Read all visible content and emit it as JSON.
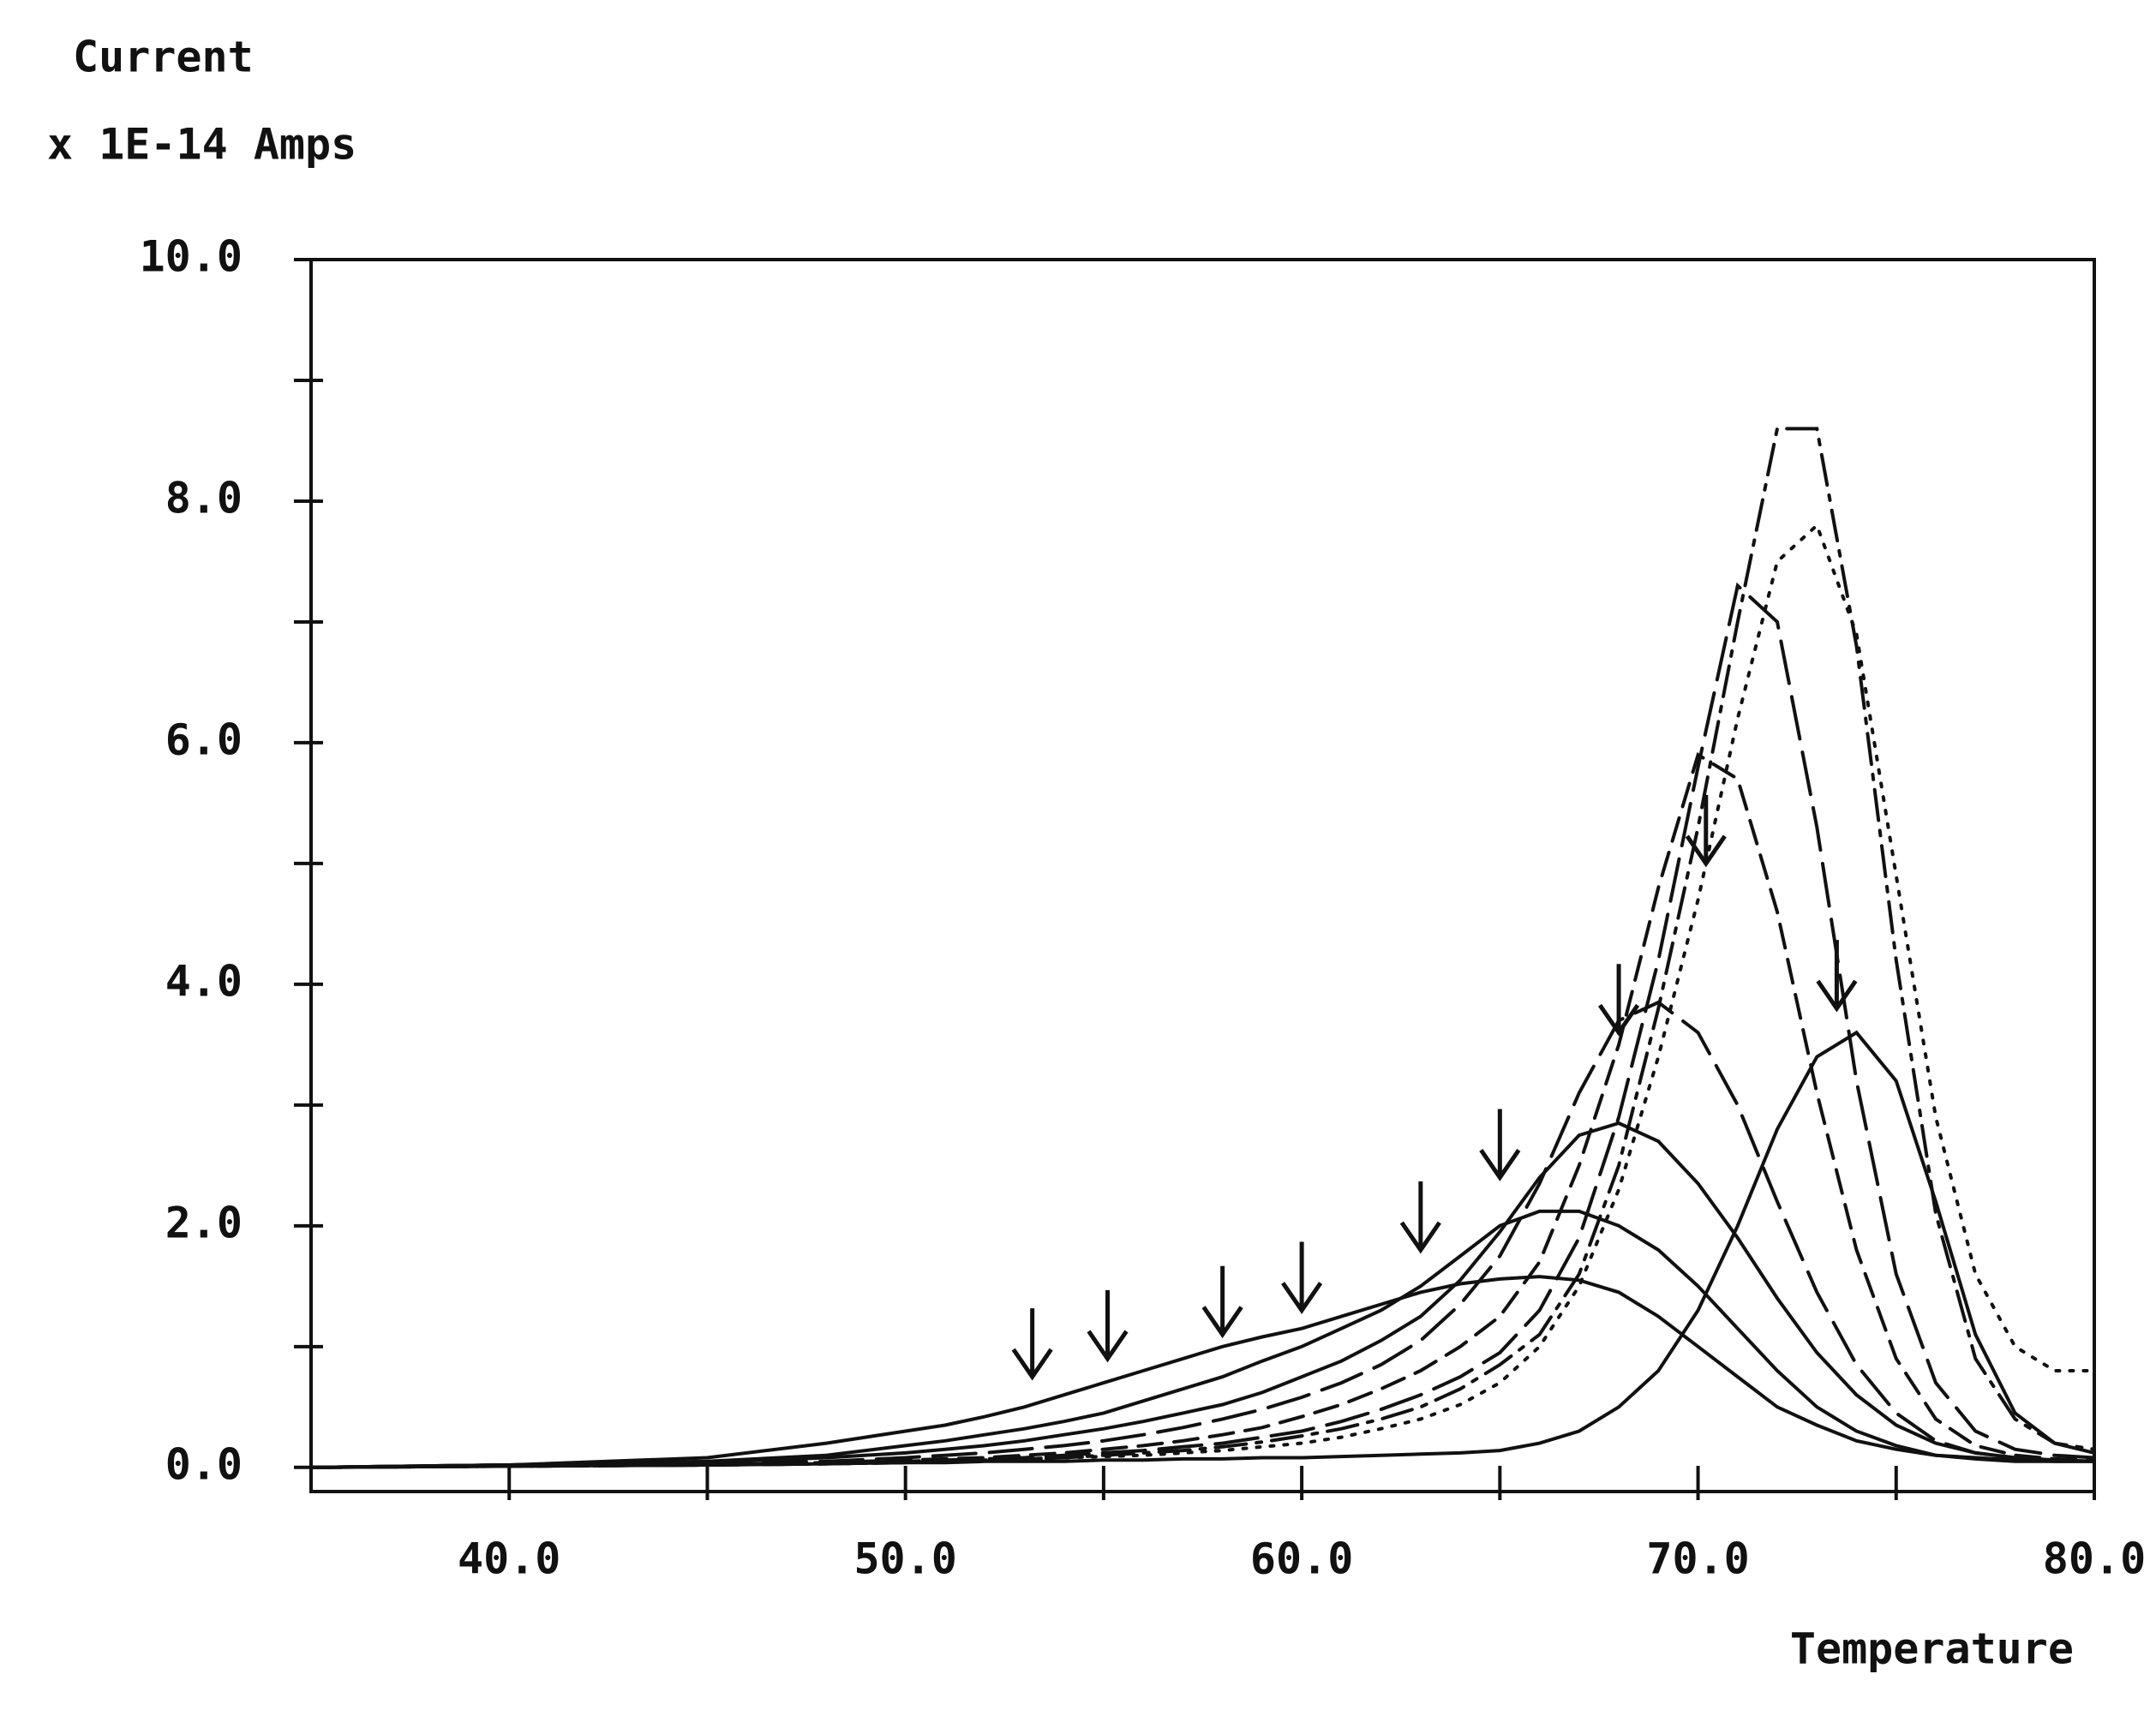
{
  "chart_data": {
    "type": "line",
    "y_label_lines": [
      "Current",
      "x 1E-14 Amps"
    ],
    "xlabel": "Temperature",
    "xlim": [
      35,
      80
    ],
    "ylim": [
      -0.2,
      10
    ],
    "xticks": [
      {
        "value": 40,
        "label": "40.0"
      },
      {
        "value": 50,
        "label": "50.0"
      },
      {
        "value": 60,
        "label": "60.0"
      },
      {
        "value": 70,
        "label": "70.0"
      },
      {
        "value": 80,
        "label": "80.0"
      }
    ],
    "xminor": [
      45,
      55,
      65,
      75
    ],
    "yticks": [
      {
        "value": 0,
        "label": "0.0"
      },
      {
        "value": 2,
        "label": "2.0"
      },
      {
        "value": 4,
        "label": "4.0"
      },
      {
        "value": 6,
        "label": "6.0"
      },
      {
        "value": 8,
        "label": "8.0"
      },
      {
        "value": 10,
        "label": "10.0"
      }
    ],
    "yminor": [
      1,
      3,
      5,
      7,
      9
    ],
    "x": [
      35,
      40,
      45,
      48,
      50,
      51,
      52,
      53,
      54,
      55,
      56,
      57,
      58,
      59,
      60,
      61,
      62,
      63,
      64,
      65,
      66,
      67,
      68,
      69,
      70,
      71,
      72,
      73,
      74,
      75,
      76,
      77,
      78,
      79,
      80
    ],
    "series": [
      {
        "color": "#111111",
        "style": "solid",
        "values": [
          0,
          0.02,
          0.08,
          0.2,
          0.3,
          0.35,
          0.42,
          0.5,
          0.6,
          0.7,
          0.8,
          0.9,
          1.0,
          1.08,
          1.15,
          1.25,
          1.35,
          1.45,
          1.52,
          1.56,
          1.58,
          1.55,
          1.45,
          1.25,
          1.0,
          0.75,
          0.5,
          0.35,
          0.22,
          0.15,
          0.1,
          0.08,
          0.06,
          0.05,
          0.05
        ]
      },
      {
        "color": "#111111",
        "style": "solid",
        "values": [
          0,
          0.02,
          0.05,
          0.1,
          0.18,
          0.22,
          0.27,
          0.32,
          0.38,
          0.45,
          0.55,
          0.65,
          0.75,
          0.88,
          1.0,
          1.15,
          1.3,
          1.5,
          1.75,
          2.0,
          2.12,
          2.12,
          2.0,
          1.8,
          1.5,
          1.15,
          0.8,
          0.5,
          0.3,
          0.18,
          0.1,
          0.07,
          0.05,
          0.05,
          0.05
        ]
      },
      {
        "color": "#111111",
        "style": "solid",
        "values": [
          0,
          0.02,
          0.04,
          0.08,
          0.12,
          0.15,
          0.18,
          0.22,
          0.27,
          0.32,
          0.38,
          0.45,
          0.52,
          0.62,
          0.75,
          0.88,
          1.05,
          1.25,
          1.55,
          1.95,
          2.4,
          2.75,
          2.85,
          2.7,
          2.35,
          1.9,
          1.4,
          0.95,
          0.6,
          0.35,
          0.2,
          0.12,
          0.08,
          0.06,
          0.05
        ]
      },
      {
        "color": "#111111",
        "style": "longdash",
        "values": [
          0,
          0.02,
          0.03,
          0.05,
          0.08,
          0.1,
          0.12,
          0.15,
          0.18,
          0.22,
          0.27,
          0.33,
          0.4,
          0.48,
          0.58,
          0.7,
          0.85,
          1.05,
          1.35,
          1.75,
          2.35,
          3.1,
          3.7,
          3.85,
          3.6,
          3.0,
          2.2,
          1.45,
          0.85,
          0.45,
          0.22,
          0.12,
          0.08,
          0.06,
          0.05
        ]
      },
      {
        "color": "#111111",
        "style": "dashed",
        "values": [
          0,
          0.01,
          0.02,
          0.04,
          0.06,
          0.07,
          0.08,
          0.1,
          0.12,
          0.15,
          0.18,
          0.22,
          0.27,
          0.33,
          0.42,
          0.52,
          0.65,
          0.8,
          1.0,
          1.25,
          1.7,
          2.5,
          3.5,
          4.8,
          5.9,
          5.7,
          4.6,
          3.1,
          1.8,
          0.9,
          0.4,
          0.18,
          0.1,
          0.07,
          0.06
        ]
      },
      {
        "color": "#111111",
        "style": "longdash",
        "values": [
          0,
          0.01,
          0.02,
          0.03,
          0.05,
          0.06,
          0.07,
          0.08,
          0.1,
          0.12,
          0.14,
          0.17,
          0.2,
          0.25,
          0.3,
          0.38,
          0.48,
          0.6,
          0.75,
          0.95,
          1.3,
          1.9,
          2.9,
          4.2,
          5.8,
          7.3,
          7.0,
          5.3,
          3.2,
          1.6,
          0.7,
          0.3,
          0.15,
          0.1,
          0.08
        ]
      },
      {
        "color": "#111111",
        "style": "dashdot",
        "values": [
          0,
          0.01,
          0.02,
          0.03,
          0.04,
          0.05,
          0.06,
          0.07,
          0.08,
          0.1,
          0.12,
          0.14,
          0.17,
          0.21,
          0.26,
          0.32,
          0.4,
          0.5,
          0.65,
          0.85,
          1.1,
          1.6,
          2.5,
          3.8,
          5.3,
          7.0,
          8.6,
          8.6,
          6.8,
          4.2,
          2.1,
          0.9,
          0.4,
          0.2,
          0.15
        ]
      },
      {
        "color": "#111111",
        "style": "dotted",
        "values": [
          0,
          0.01,
          0.02,
          0.03,
          0.04,
          0.05,
          0.06,
          0.07,
          0.08,
          0.09,
          0.1,
          0.12,
          0.14,
          0.17,
          0.2,
          0.25,
          0.32,
          0.4,
          0.52,
          0.7,
          1.0,
          1.5,
          2.3,
          3.4,
          4.7,
          6.2,
          7.5,
          7.8,
          6.9,
          4.9,
          2.9,
          1.6,
          1.0,
          0.8,
          0.8
        ]
      },
      {
        "color": "#111111",
        "style": "solid",
        "values": [
          0,
          0.01,
          0.02,
          0.03,
          0.04,
          0.04,
          0.05,
          0.05,
          0.05,
          0.06,
          0.06,
          0.07,
          0.07,
          0.08,
          0.08,
          0.09,
          0.1,
          0.11,
          0.12,
          0.14,
          0.2,
          0.3,
          0.5,
          0.8,
          1.3,
          2.0,
          2.8,
          3.4,
          3.6,
          3.2,
          2.2,
          1.1,
          0.45,
          0.2,
          0.12
        ]
      }
    ],
    "arrows": {
      "x": [
        53.2,
        55.1,
        58,
        60,
        63,
        65,
        68,
        70.2,
        73.5
      ],
      "y": [
        0.75,
        0.9,
        1.1,
        1.3,
        1.8,
        2.4,
        3.6,
        5.0,
        3.8
      ]
    }
  }
}
